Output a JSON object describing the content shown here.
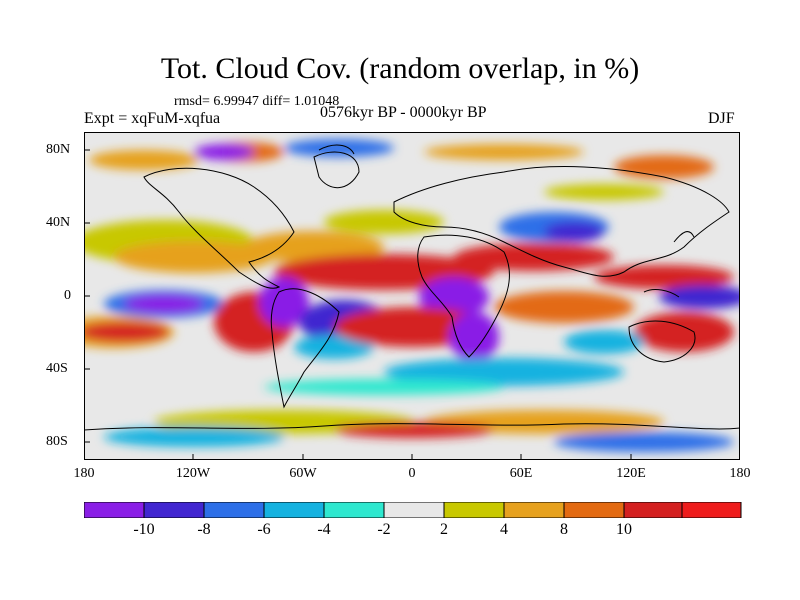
{
  "title": "Tot. Cloud Cov. (random overlap, in %)",
  "stats_line": "rmsd= 6.99947 diff= 1.01048",
  "expt_label": "Expt = xqFuM-xqfua",
  "period_label": "0576kyr BP - 0000kyr BP",
  "season_label": "DJF",
  "lat_ticks": [
    "80N",
    "40N",
    "0",
    "40S",
    "80S"
  ],
  "lon_ticks": [
    "180",
    "120W",
    "60W",
    "0",
    "60E",
    "120E",
    "180"
  ],
  "colorbar": {
    "labels": [
      "-10",
      "-8",
      "-6",
      "-4",
      "-2",
      "2",
      "4",
      "8",
      "10"
    ],
    "colors": [
      "#8a1ee6",
      "#4126d0",
      "#2d6fe8",
      "#15b2e0",
      "#2ee8cf",
      "#e8e8e8",
      "#c8c800",
      "#e6a11e",
      "#e36a12",
      "#d42020",
      "#ee1c1c"
    ]
  }
}
